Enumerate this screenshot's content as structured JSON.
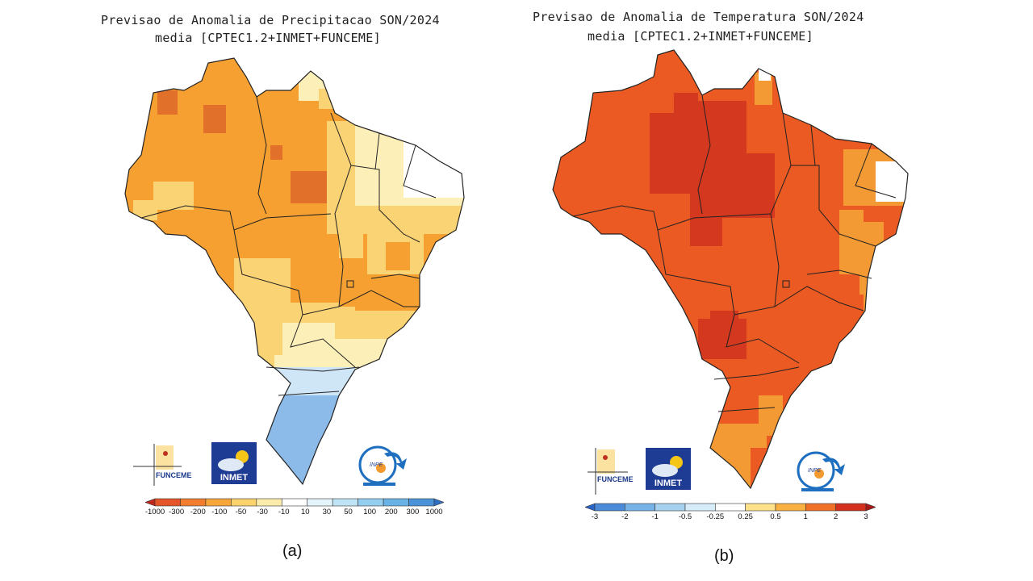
{
  "panel_a": {
    "title_line1": "Previsao de Anomalia de Precipitacao SON/2024",
    "title_line2": "media [CPTEC1.2+INMET+FUNCEME]",
    "caption": "(a)",
    "scale_labels": [
      "-1000",
      "-300",
      "-200",
      "-100",
      "-50",
      "-30",
      "-10",
      "10",
      "30",
      "50",
      "100",
      "200",
      "300",
      "1000"
    ],
    "scale_colors": [
      "#c0281c",
      "#e5552a",
      "#f07e2e",
      "#f6a63a",
      "#fbd36c",
      "#fcecab",
      "#ffffff",
      "#e3f4fb",
      "#bfe4f6",
      "#93cdef",
      "#69b2e6",
      "#4b93d8",
      "#2e6fc3"
    ],
    "map_colors": {
      "strong": "#e0702a",
      "medium": "#f5a030",
      "light": "#fad374",
      "pale": "#fcefb8",
      "blue": "#8dbbe9",
      "white": "#ffffff"
    },
    "logos": {
      "funceme": "FUNCEME",
      "inmet": "INMET",
      "inpe": "INPE"
    }
  },
  "panel_b": {
    "title_line1": "Previsao de Anomalia de Temperatura SON/2024",
    "title_line2": "media [CPTEC1.2+INMET+FUNCEME]",
    "caption": "(b)",
    "scale_labels": [
      "-3",
      "-2",
      "-1",
      "-0.5",
      "-0.25",
      "0.25",
      "0.5",
      "1",
      "2",
      "3"
    ],
    "scale_colors": [
      "#2a64c8",
      "#4a8ad8",
      "#76b2e6",
      "#a6d2f0",
      "#d6ecf8",
      "#ffffff",
      "#fce08a",
      "#f8b040",
      "#f07028",
      "#d43020",
      "#a81818"
    ],
    "map_colors": {
      "dark": "#d4381e",
      "main": "#ea5a22",
      "orange": "#f39a34",
      "white": "#ffffff"
    },
    "logos": {
      "funceme": "FUNCEME",
      "inmet": "INMET",
      "inpe": "INPE"
    }
  }
}
